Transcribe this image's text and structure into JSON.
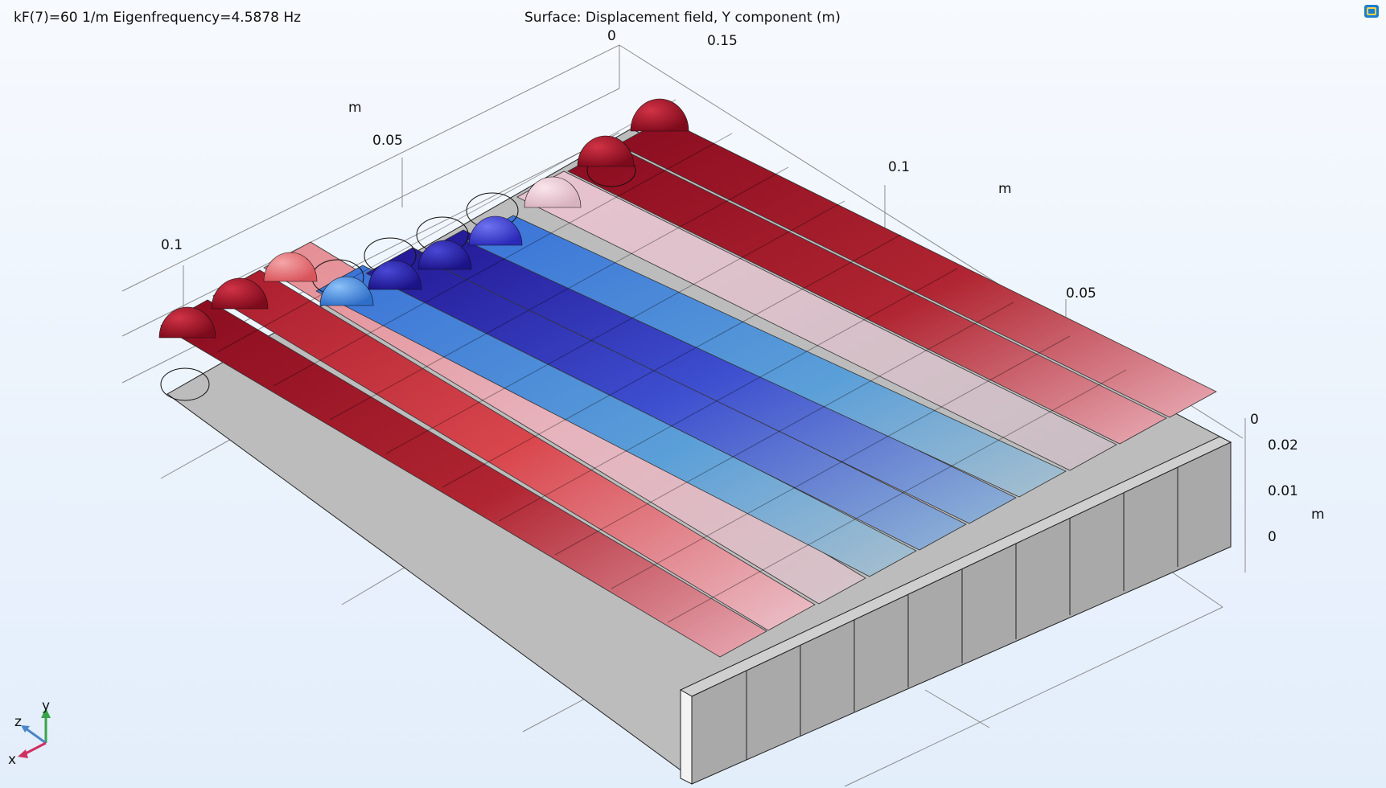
{
  "header": {
    "left": "kF(7)=60 1/m Eigenfrequency=4.5878 Hz",
    "center": "Surface: Displacement field, Y component (m)"
  },
  "axes": {
    "left_ticks": [
      "0.1",
      "0.05",
      "0"
    ],
    "left_unit": "m",
    "right_ticks": [
      "0.15",
      "0.1",
      "0.05",
      "0"
    ],
    "right_unit": "m",
    "vert_ticks": [
      "0.02",
      "0.01",
      "0"
    ],
    "vert_unit": "m"
  },
  "triad": {
    "x": "x",
    "y": "y",
    "z": "z"
  },
  "colors": {
    "strong_red": "#8e0e22",
    "red": "#c8323c",
    "pink": "#e7a0a8",
    "light_pink": "#e9cdd6",
    "blue": "#3f78d8",
    "dark_blue": "#2a1ca0",
    "indigo": "#3b33c8",
    "grey": "#a9a9a9"
  },
  "icons": {
    "corner": "window-toggle-icon"
  }
}
